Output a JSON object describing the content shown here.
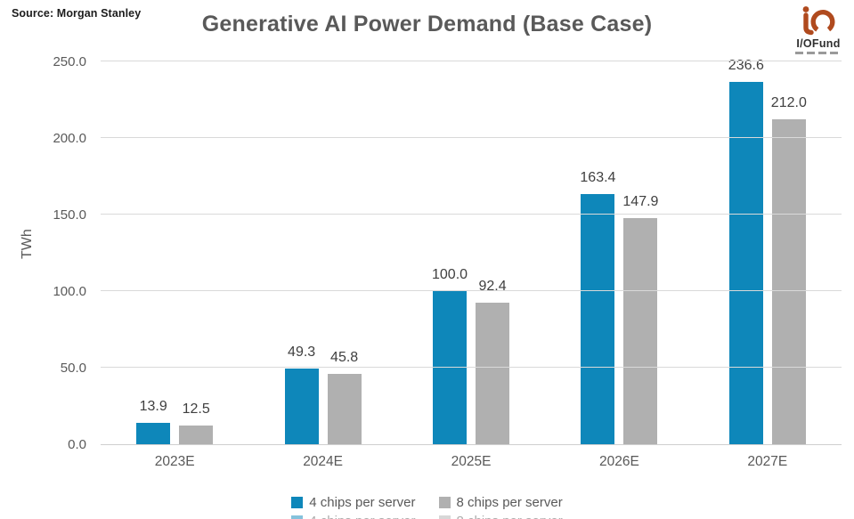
{
  "source_note": "Source: Morgan Stanley",
  "logo": {
    "text": "I/OFund",
    "mark_color": "#b04a1e"
  },
  "colors": {
    "series1": "#0e87ba",
    "series2": "#b0b0b0",
    "gridline": "#d9d9d9",
    "axis_text": "#595959",
    "value_label_text": "#3f3f3f",
    "title_text": "#595959"
  },
  "chart_data": {
    "type": "bar",
    "title": "Generative AI Power Demand (Base Case)",
    "xlabel": "",
    "ylabel": "TWh",
    "ylim": [
      0,
      250
    ],
    "ytick_values": [
      0,
      50,
      100,
      150,
      200,
      250
    ],
    "ytick_labels": [
      "0.0",
      "50.0",
      "100.0",
      "150.0",
      "200.0",
      "250.0"
    ],
    "grid": true,
    "legend_position": "bottom",
    "categories": [
      "2023E",
      "2024E",
      "2025E",
      "2026E",
      "2027E"
    ],
    "series": [
      {
        "name": "4 chips per server",
        "color": "#0e87ba",
        "values": [
          13.9,
          49.3,
          100.0,
          163.4,
          236.6
        ]
      },
      {
        "name": "8 chips per server",
        "color": "#b0b0b0",
        "values": [
          12.5,
          45.8,
          92.4,
          147.9,
          212.0
        ]
      }
    ]
  }
}
